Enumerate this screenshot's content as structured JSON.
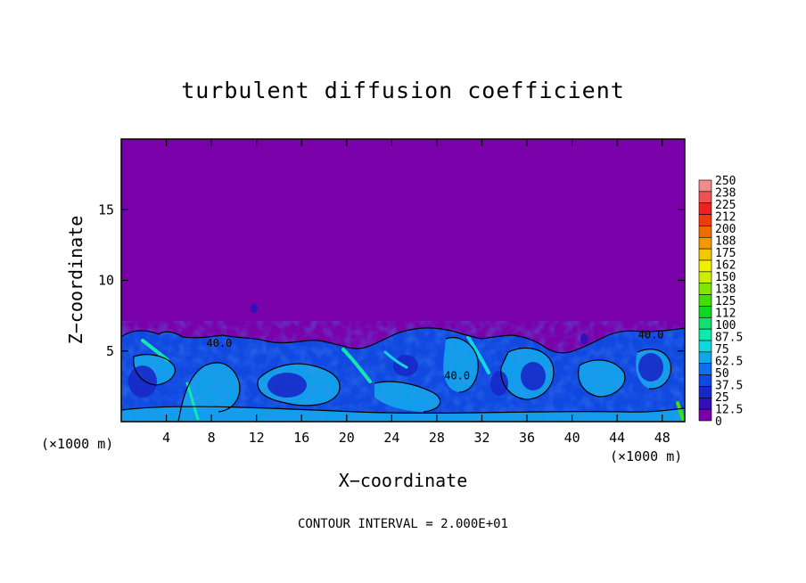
{
  "chart_data": {
    "type": "heatmap",
    "title": "turbulent diffusion coefficient",
    "xlabel": "X−coordinate",
    "ylabel": "Z−coordinate",
    "x_unit": "(×1000 m)",
    "xlim": [
      0,
      50
    ],
    "ylim": [
      0,
      20
    ],
    "x_ticks": [
      4,
      8,
      12,
      16,
      20,
      24,
      28,
      32,
      36,
      40,
      44,
      48
    ],
    "y_ticks": [
      5,
      10,
      15
    ],
    "contour_interval_text": "CONTOUR INTERVAL = 2.000E+01",
    "contour_labels": [
      {
        "text": "40.0",
        "x": 8.7,
        "z": 5.3
      },
      {
        "text": "40.0",
        "x": 29.8,
        "z": 3.0
      },
      {
        "text": "40.0",
        "x": 47.0,
        "z": 5.9
      }
    ],
    "colorbar": {
      "labels": [
        "250",
        "238",
        "225",
        "212",
        "200",
        "188",
        "175",
        "162",
        "150",
        "138",
        "125",
        "112",
        "100",
        "87.5",
        "75",
        "62.5",
        "50",
        "37.5",
        "25",
        "12.5",
        "0"
      ],
      "colors": [
        "#f28a8a",
        "#f05050",
        "#f02020",
        "#f03a10",
        "#f06a00",
        "#f49a00",
        "#f4c800",
        "#f0f000",
        "#c8f000",
        "#80e800",
        "#40e000",
        "#10d820",
        "#10e070",
        "#10e8b0",
        "#10d8e0",
        "#10a8ec",
        "#1070ec",
        "#1048e0",
        "#1828c8",
        "#3010b8",
        "#7a00aa"
      ]
    },
    "background_value": 0,
    "turbulent_layer_top_z": 6.5,
    "typical_layer_values": [
      25,
      37.5,
      50,
      62.5
    ],
    "max_layer_values": 87.5
  }
}
